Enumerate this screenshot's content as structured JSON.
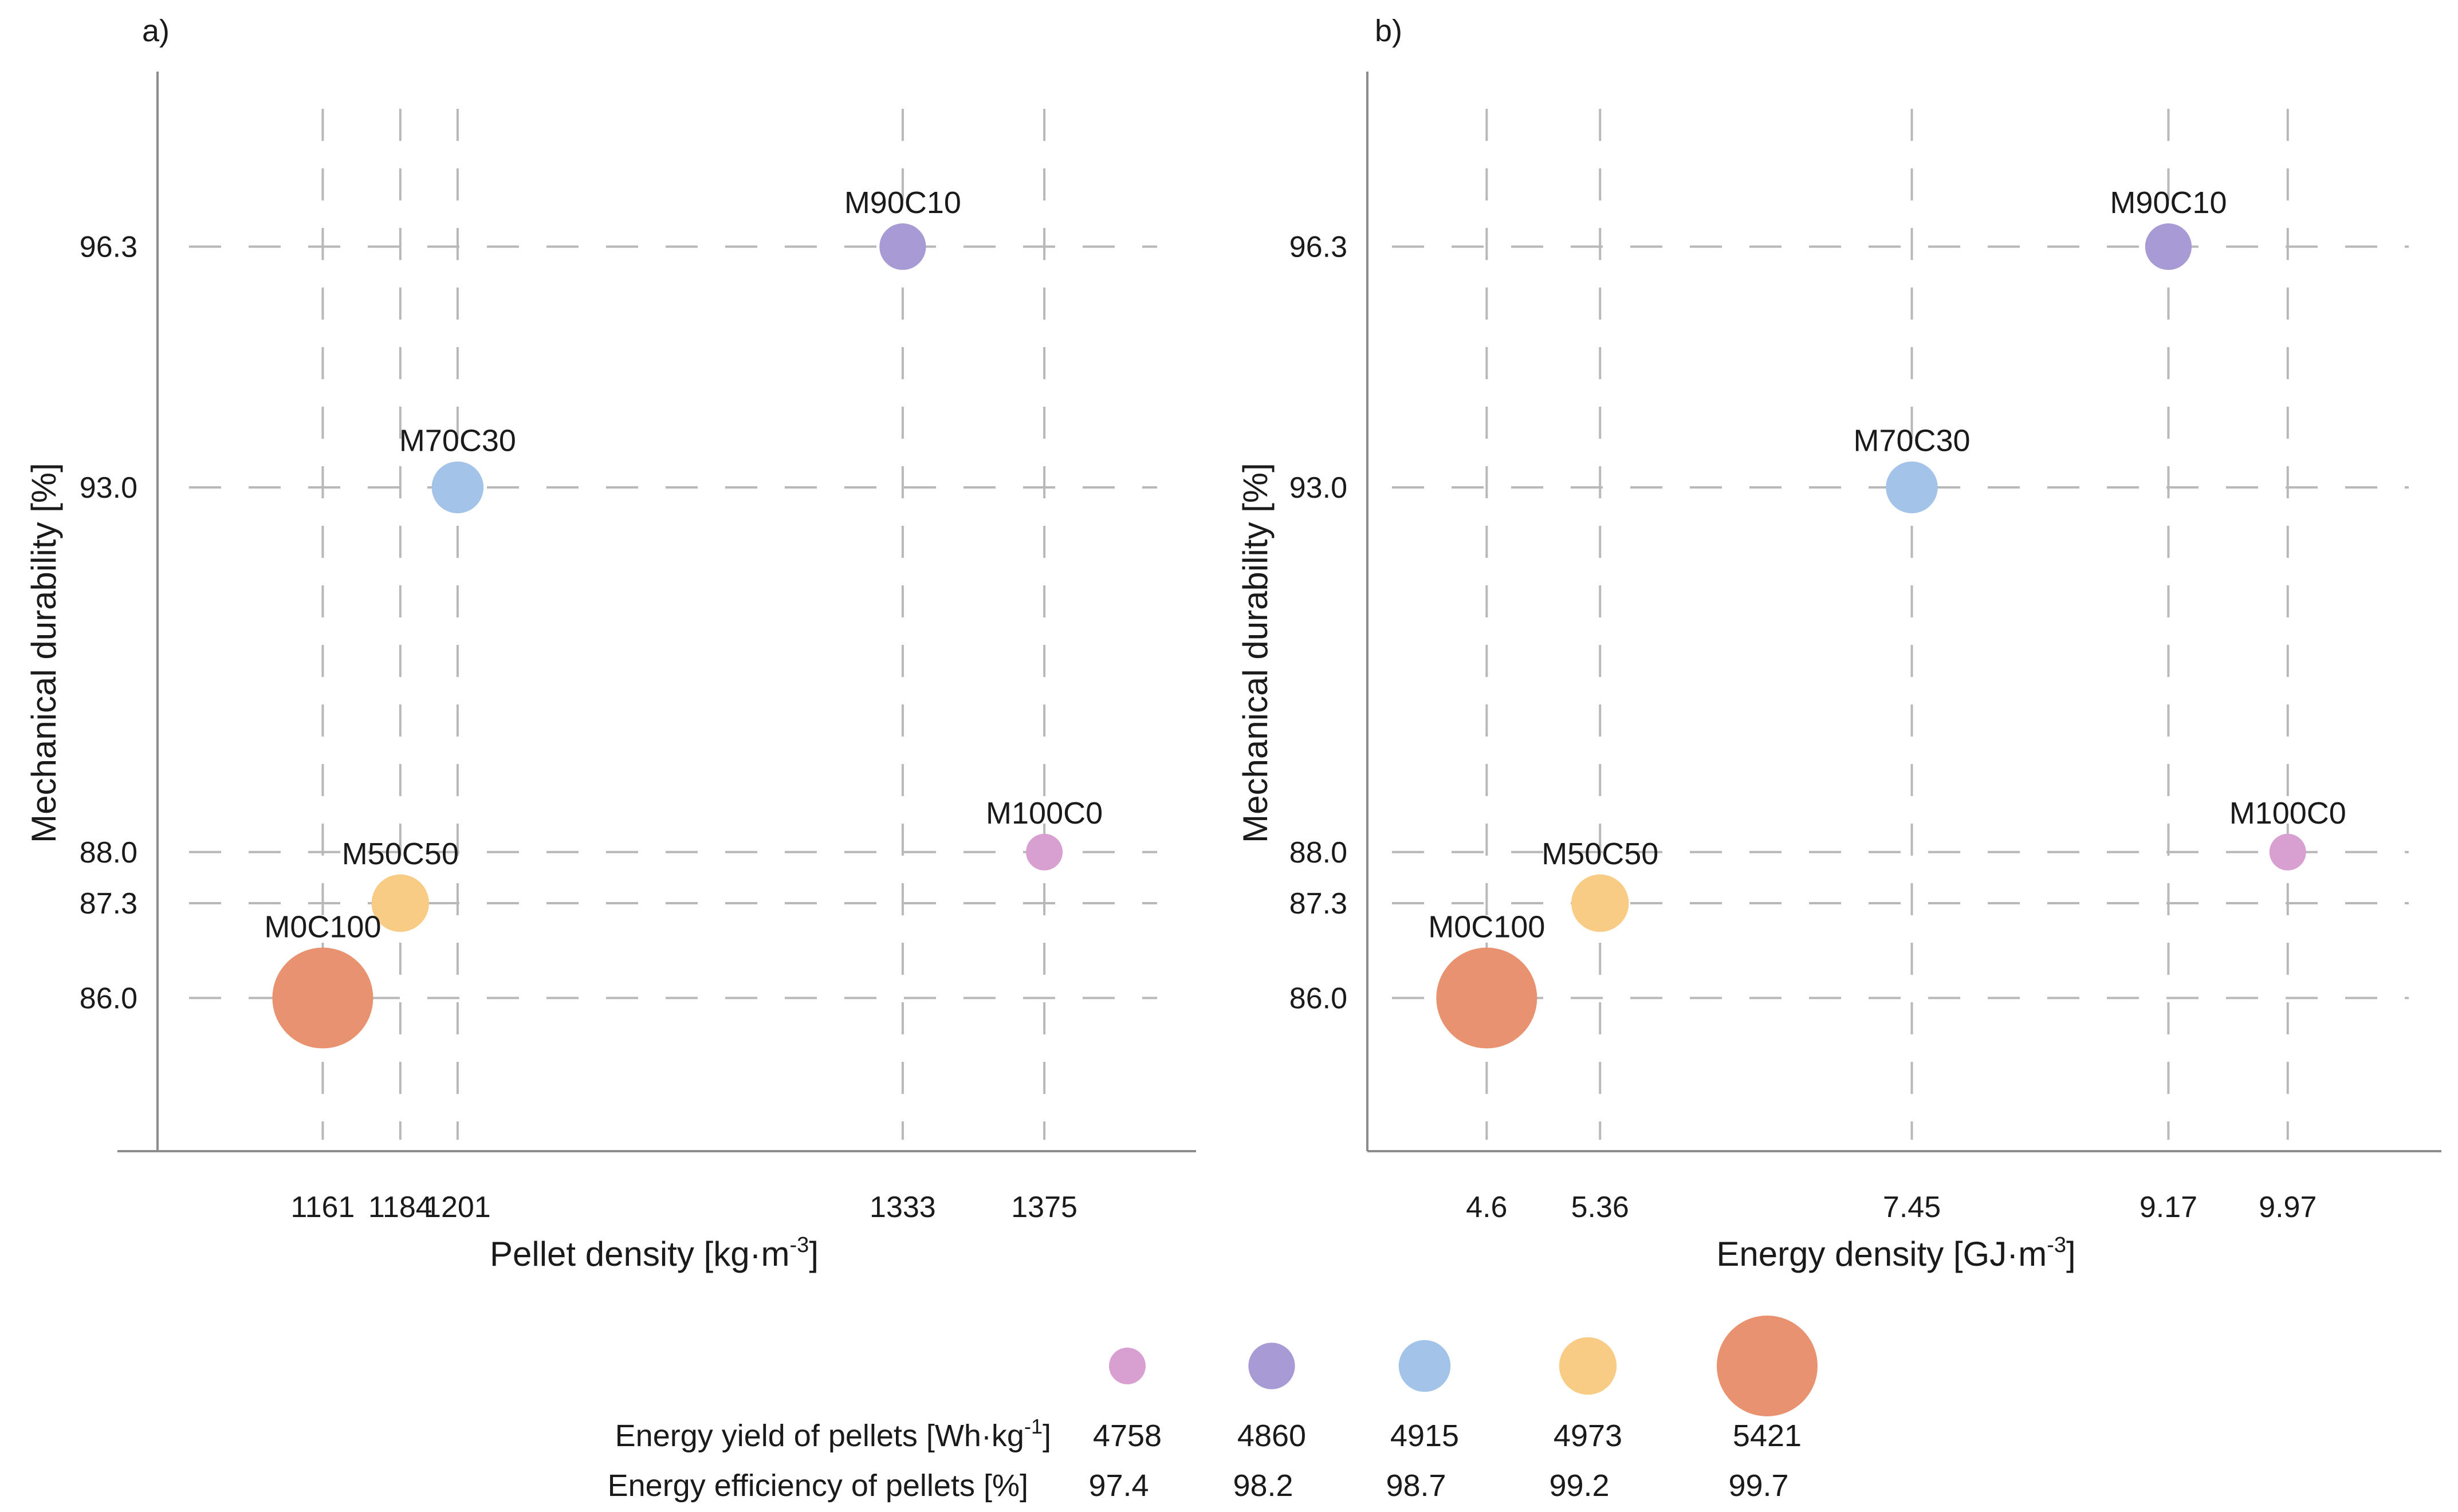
{
  "chart_data": [
    {
      "type": "scatter",
      "panel_label": "a)",
      "xlabel": "Pellet density [kg·m",
      "xlabel_sup": "-3",
      "xlabel_close": "]",
      "ylabel": "Mechanical durability [%]",
      "xlim": [
        1112,
        1420
      ],
      "ylim": [
        83.9,
        98.7
      ],
      "xticks": [
        "1161",
        "1184",
        "1201",
        "1333",
        "1375"
      ],
      "xtick_values": [
        1161,
        1184,
        1201,
        1333,
        1375
      ],
      "yticks": [
        "96.3",
        "93.0",
        "88.0",
        "87.3",
        "86.0"
      ],
      "ytick_values": [
        96.3,
        93.0,
        88.0,
        87.3,
        86.0
      ],
      "points": [
        {
          "label": "M0C100",
          "x": 1161,
          "y": 86.0,
          "energy_yield": 5421,
          "energy_efficiency": 99.7
        },
        {
          "label": "M50C50",
          "x": 1184,
          "y": 87.3,
          "energy_yield": 4973,
          "energy_efficiency": 99.2
        },
        {
          "label": "M70C30",
          "x": 1201,
          "y": 93.0,
          "energy_yield": 4915,
          "energy_efficiency": 98.7
        },
        {
          "label": "M90C10",
          "x": 1333,
          "y": 96.3,
          "energy_yield": 4860,
          "energy_efficiency": 98.2
        },
        {
          "label": "M100C0",
          "x": 1375,
          "y": 88.0,
          "energy_yield": 4758,
          "energy_efficiency": 97.4
        }
      ]
    },
    {
      "type": "scatter",
      "panel_label": "b)",
      "xlabel": "Energy density  [GJ·m",
      "xlabel_sup": "-3",
      "xlabel_close": "]",
      "ylabel": "Mechanical durability [%]",
      "xlim": [
        3.8,
        11.0
      ],
      "ylim": [
        83.9,
        98.7
      ],
      "xticks": [
        "4.6",
        "5.36",
        "7.45",
        "9.17",
        "9.97"
      ],
      "xtick_values": [
        4.6,
        5.36,
        7.45,
        9.17,
        9.97
      ],
      "yticks": [
        "96.3",
        "93.0",
        "88.0",
        "87.3",
        "86.0"
      ],
      "ytick_values": [
        96.3,
        93.0,
        88.0,
        87.3,
        86.0
      ],
      "points": [
        {
          "label": "M0C100",
          "x": 4.6,
          "y": 86.0,
          "energy_yield": 5421,
          "energy_efficiency": 99.7
        },
        {
          "label": "M50C50",
          "x": 5.36,
          "y": 87.3,
          "energy_yield": 4973,
          "energy_efficiency": 99.2
        },
        {
          "label": "M70C30",
          "x": 7.45,
          "y": 93.0,
          "energy_yield": 4915,
          "energy_efficiency": 98.7
        },
        {
          "label": "M90C10",
          "x": 9.17,
          "y": 96.3,
          "energy_yield": 4860,
          "energy_efficiency": 98.2
        },
        {
          "label": "M100C0",
          "x": 9.97,
          "y": 88.0,
          "energy_yield": 4758,
          "energy_efficiency": 97.4
        }
      ]
    }
  ],
  "legend": {
    "row1_label": "Energy yield of pellets  [Wh·kg",
    "row1_sup": "-1",
    "row1_close": "]",
    "row2_label": "Energy efficiency of pellets [%]",
    "energy_yield": [
      "4758",
      "4860",
      "4915",
      "4973",
      "5421"
    ],
    "energy_efficiency": [
      "97.4",
      "98.2",
      "98.7",
      "99.2",
      "99.7"
    ],
    "colors": [
      "#d8a0d0",
      "#a89ad4",
      "#a3c4e8",
      "#f8cc84",
      "#e89270"
    ]
  },
  "point_colors": {
    "M100C0": "#d8a0d0",
    "M90C10": "#a89ad4",
    "M70C30": "#a3c4e8",
    "M50C50": "#f8cc84",
    "M0C100": "#e89270"
  }
}
